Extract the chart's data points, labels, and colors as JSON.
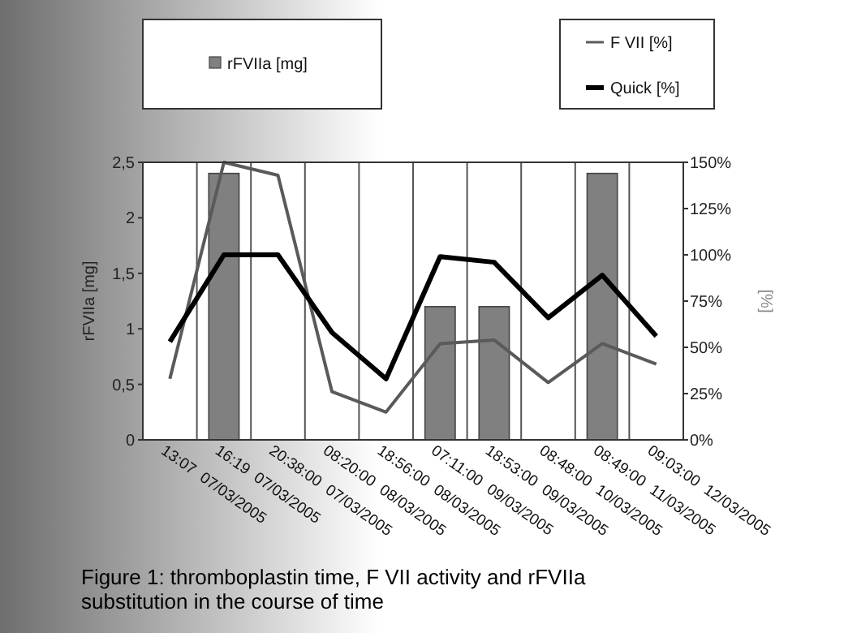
{
  "chart_data": {
    "type": "bar",
    "title": "Figure 1: thromboplastin time, F VII activity and rFVIIa substitution in the course of time",
    "ylabel": "rFVIIa [mg]",
    "y2label": "[%]",
    "categories": [
      "13:07  07/03/2005",
      "16:19  07/03/2005",
      "20:38:00  07/03/2005",
      "08:20:00  08/03/2005",
      "18:56:00  08/03/2005",
      "07:11:00  09/03/2005",
      "18:53:00  09/03/2005",
      "08:48:00  10/03/2005",
      "08:49:00  11/03/2005",
      "09:03:00  12/03/2005"
    ],
    "series": [
      {
        "name": "rFVIIa [mg]",
        "color": "#808080",
        "values": [
          null,
          2.4,
          null,
          null,
          null,
          1.2,
          1.2,
          null,
          2.4,
          null
        ]
      },
      {
        "name": "F VII [%]",
        "type": "line",
        "axis": "y2",
        "color": "#5a5a5a",
        "values": [
          33,
          150,
          143,
          26,
          15,
          52,
          54,
          31,
          52,
          41
        ]
      },
      {
        "name": "Quick [%]",
        "type": "line",
        "axis": "y2",
        "color": "#000000",
        "values": [
          53,
          100,
          100,
          58,
          33,
          99,
          96,
          66,
          89,
          56
        ]
      }
    ],
    "ylim": [
      0,
      2.5
    ],
    "yticks": [
      0,
      {
        "value": 0.5,
        "label": "0,5"
      },
      1,
      {
        "value": 1.5,
        "label": "1,5"
      },
      2,
      {
        "value": 2.5,
        "label": "2,5"
      }
    ],
    "y2lim": [
      0,
      150
    ],
    "y2ticks": [
      {
        "value": 0,
        "label": "0%"
      },
      {
        "value": 25,
        "label": "25%"
      },
      {
        "value": 50,
        "label": "50%"
      },
      {
        "value": 75,
        "label": "75%"
      },
      {
        "value": 100,
        "label": "100%"
      },
      {
        "value": 125,
        "label": "125%"
      },
      {
        "value": 150,
        "label": "150%"
      }
    ],
    "grid": "x",
    "legend": "top",
    "marker": "none",
    "line_style": "solid"
  }
}
